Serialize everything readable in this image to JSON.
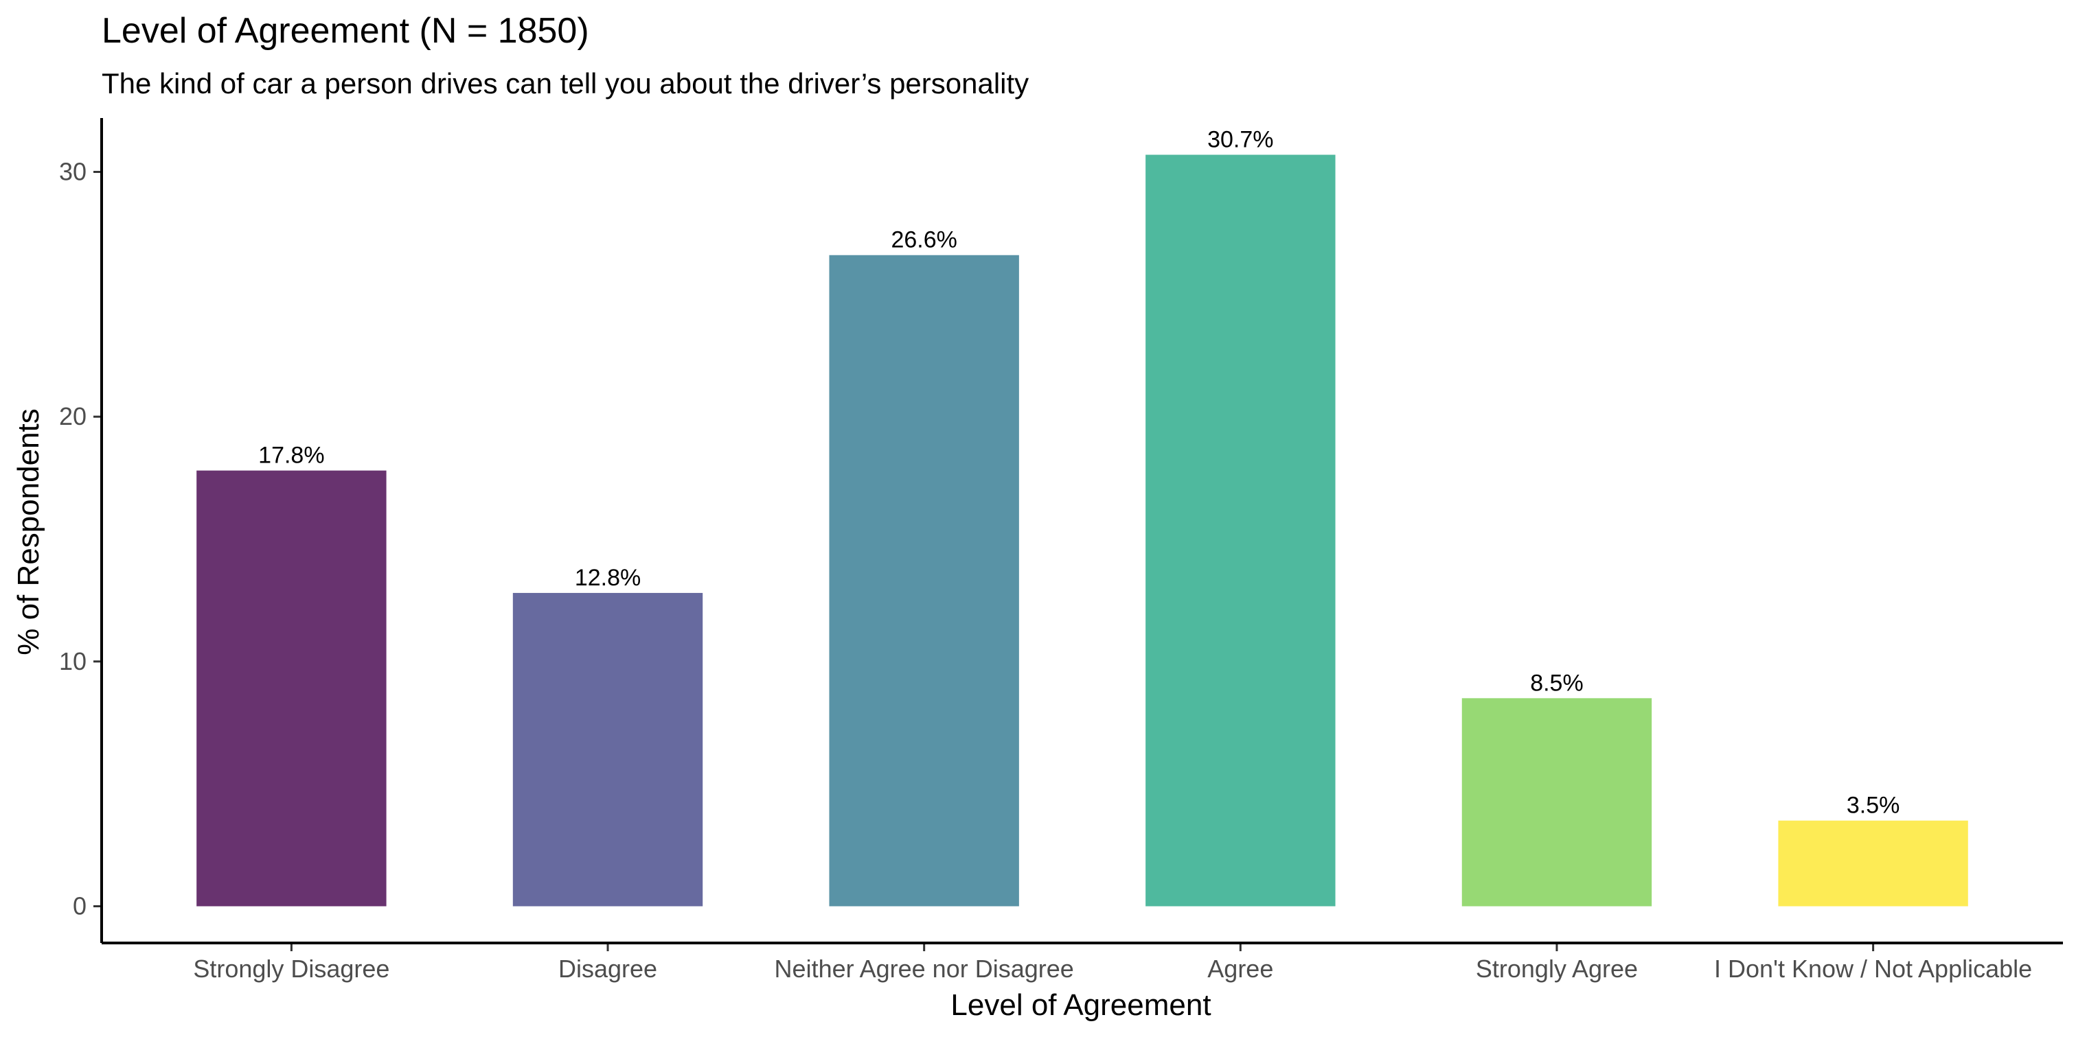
{
  "chart_data": {
    "type": "bar",
    "title": "Level of Agreement (N = 1850)",
    "subtitle": "The kind of car a person drives can tell you about the driver’s personality",
    "xlabel": "Level of Agreement",
    "ylabel": "% of Respondents",
    "categories": [
      "Strongly Disagree",
      "Disagree",
      "Neither Agree nor Disagree",
      "Agree",
      "Strongly Agree",
      "I Don't Know / Not Applicable"
    ],
    "values": [
      17.8,
      12.8,
      26.6,
      30.7,
      8.5,
      3.5
    ],
    "data_labels": [
      "17.8%",
      "12.8%",
      "26.6%",
      "30.7%",
      "8.5%",
      "3.5%"
    ],
    "colors": [
      "#68336f",
      "#676a9f",
      "#5993a6",
      "#4fb99e",
      "#97d974",
      "#fdeb55"
    ],
    "yticks": [
      0,
      10,
      20,
      30
    ],
    "ylim": [
      -1.5,
      32.2
    ],
    "grid": false,
    "legend": "none"
  }
}
